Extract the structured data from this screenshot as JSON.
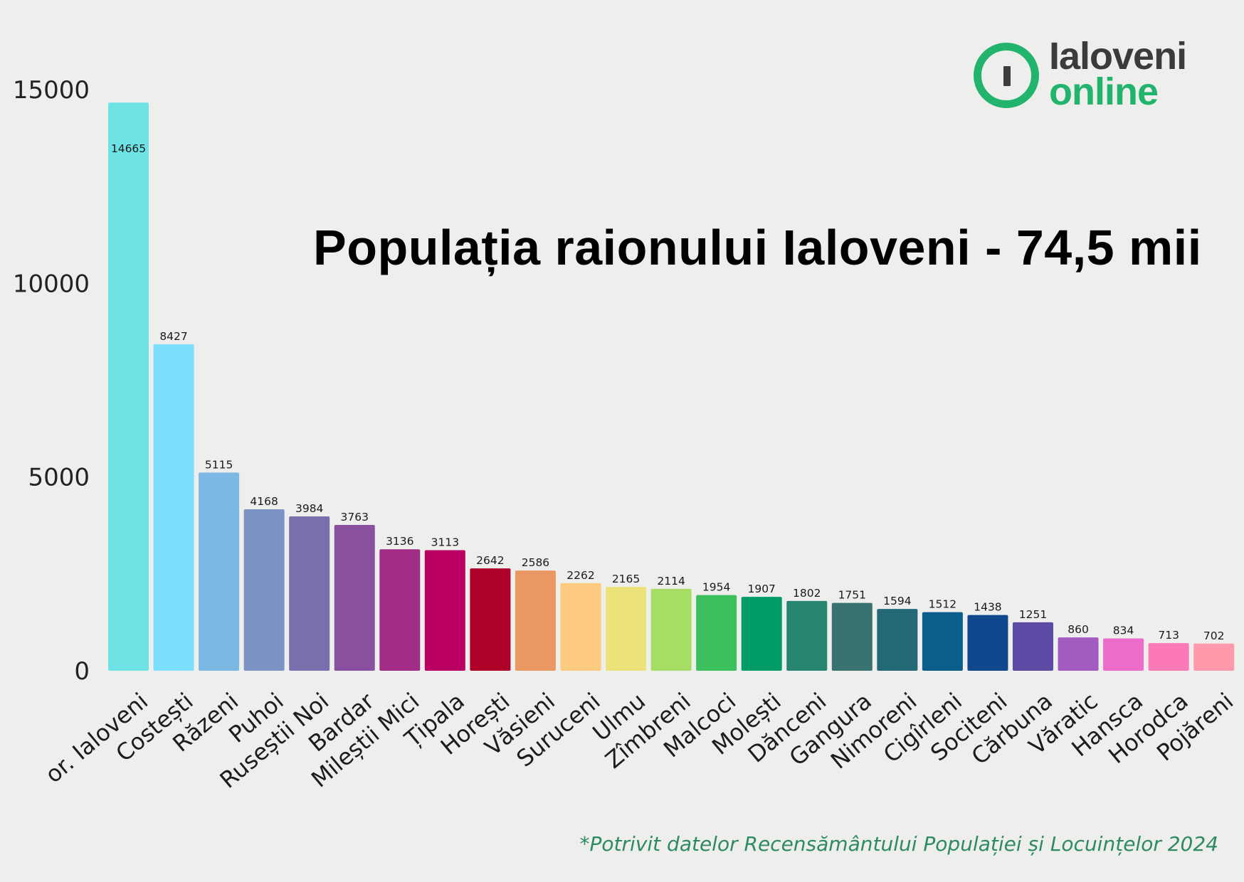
{
  "title": "Populația raionului Ialoveni - 74,5 mii",
  "logo": {
    "word1": "Ialoveni",
    "word2": "online",
    "accent": "#22b36d",
    "dark": "#3b3b3b"
  },
  "footnote": "*Potrivit datelor Recensământului Populației și Locuințelor 2024",
  "chart_data": {
    "type": "bar",
    "title": "Populația raionului Ialoveni - 74,5 mii",
    "xlabel": "",
    "ylabel": "",
    "ylim": [
      0,
      15000
    ],
    "yticks": [
      0,
      5000,
      10000,
      15000
    ],
    "grid": false,
    "data_labels": true,
    "categories": [
      "or. Ialoveni",
      "Costești",
      "Răzeni",
      "Puhoi",
      "Ruseștii Noi",
      "Bardar",
      "Mileștii Mici",
      "Țipala",
      "Horești",
      "Văsieni",
      "Suruceni",
      "Ulmu",
      "Zîmbreni",
      "Malcoci",
      "Molești",
      "Dănceni",
      "Gangura",
      "Nimoreni",
      "Cigîrleni",
      "Sociteni",
      "Cărbuna",
      "Văratic",
      "Hansca",
      "Horodca",
      "Pojăreni"
    ],
    "values": [
      14665,
      8427,
      5115,
      4168,
      3984,
      3763,
      3136,
      3113,
      2642,
      2586,
      2262,
      2165,
      2114,
      1954,
      1907,
      1802,
      1751,
      1594,
      1512,
      1438,
      1251,
      860,
      834,
      713,
      702
    ],
    "colors": [
      "#6ee3e6",
      "#7ddffc",
      "#7db7e3",
      "#7c93c5",
      "#7a6eac",
      "#8a50a0",
      "#a22d86",
      "#bb0064",
      "#ae0029",
      "#eb9764",
      "#fdcb80",
      "#ebe37a",
      "#a6dd65",
      "#3cc05e",
      "#009c68",
      "#25856e",
      "#387371",
      "#236876",
      "#0b5d8c",
      "#11488d",
      "#5d4aa5",
      "#a45bc1",
      "#ec6cc9",
      "#fc79b8",
      "#fe9aac"
    ]
  }
}
